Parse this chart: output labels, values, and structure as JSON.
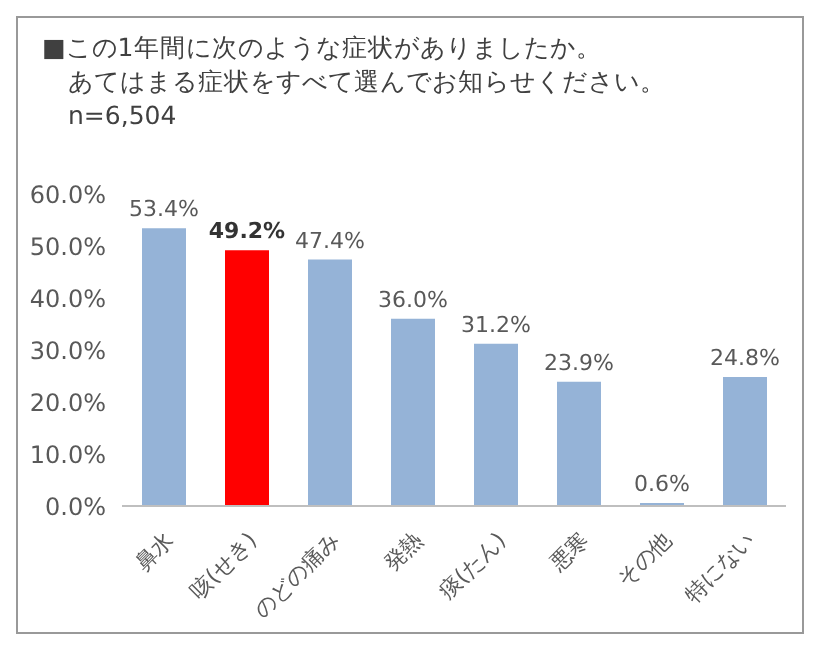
{
  "chart_data": {
    "type": "bar",
    "title": "■この1年間に次のような症状がありましたか。あてはまる症状をすべて選んでお知らせください。",
    "subtitle": "n=6,504",
    "categories": [
      "鼻水",
      "咳(せき)",
      "のどの痛み",
      "発熱",
      "痰(たん)",
      "悪寒",
      "その他",
      "特にない"
    ],
    "values": [
      53.4,
      49.2,
      47.4,
      36.0,
      31.2,
      23.9,
      0.6,
      24.8
    ],
    "colors": [
      "#95b3d7",
      "#ff0000",
      "#95b3d7",
      "#95b3d7",
      "#95b3d7",
      "#95b3d7",
      "#95b3d7",
      "#95b3d7"
    ],
    "value_labels": [
      "53.4%",
      "49.2%",
      "47.4%",
      "36.0%",
      "31.2%",
      "23.9%",
      "0.6%",
      "24.8%"
    ],
    "ylim": [
      0,
      60
    ],
    "yticks": [
      {
        "value": 0,
        "label": "0.0%"
      },
      {
        "value": 10,
        "label": "10.0%"
      },
      {
        "value": 20,
        "label": "20.0%"
      },
      {
        "value": 30,
        "label": "30.0%"
      },
      {
        "value": 40,
        "label": "40.0%"
      },
      {
        "value": 50,
        "label": "50.0%"
      },
      {
        "value": 60,
        "label": "60.0%"
      }
    ],
    "grid": false,
    "legend": false
  }
}
